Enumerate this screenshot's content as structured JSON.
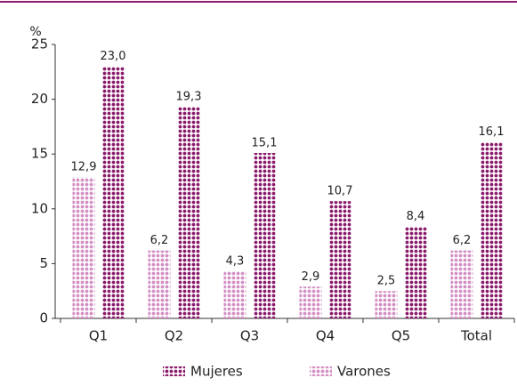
{
  "chart_data": {
    "type": "bar",
    "y_axis_label": "%",
    "categories": [
      "Q1",
      "Q2",
      "Q3",
      "Q4",
      "Q5",
      "Total"
    ],
    "series": [
      {
        "name": "Varones",
        "color": "#d38fc4",
        "values": [
          12.9,
          6.2,
          4.3,
          2.9,
          2.5,
          6.2
        ],
        "value_labels": [
          "12,9",
          "6,2",
          "4,3",
          "2,9",
          "2,5",
          "6,2"
        ]
      },
      {
        "name": "Mujeres",
        "color": "#8a1b6c",
        "values": [
          23.0,
          19.3,
          15.1,
          10.7,
          8.4,
          16.1
        ],
        "value_labels": [
          "23,0",
          "19,3",
          "15,1",
          "10,7",
          "8,4",
          "16,1"
        ]
      }
    ],
    "legend_order": [
      "Mujeres",
      "Varones"
    ],
    "ylim": [
      0,
      25
    ],
    "yticks": [
      0,
      5,
      10,
      15,
      20,
      25
    ],
    "grid": false
  }
}
